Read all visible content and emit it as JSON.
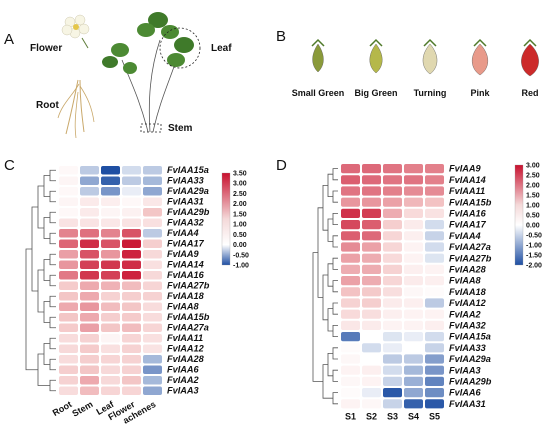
{
  "panels": {
    "A": {
      "label": "A",
      "organs": [
        "Flower",
        "Leaf",
        "Root",
        "Stem"
      ]
    },
    "B": {
      "label": "B",
      "stages": [
        "Small Green",
        "Big Green",
        "Turning",
        "Pink",
        "Red"
      ],
      "fruit_colors": [
        "#8a9a3a",
        "#b5b84a",
        "#e0d8b0",
        "#e89a8a",
        "#cc2a2a"
      ]
    },
    "C": {
      "label": "C",
      "columns": [
        "Root",
        "Stem",
        "Leaf",
        "Flower",
        "achenes"
      ],
      "legend_ticks": [
        "3.50",
        "3.00",
        "2.50",
        "2.00",
        "1.50",
        "1.00",
        "0.50",
        "0.00",
        "-0.50",
        "-1.00"
      ]
    },
    "D": {
      "label": "D",
      "columns": [
        "S1",
        "S2",
        "S3",
        "S4",
        "S5"
      ],
      "legend_ticks": [
        "3.00",
        "2.50",
        "2.00",
        "1.50",
        "1.00",
        "0.50",
        "0.00",
        "-0.50",
        "-1.00",
        "-1.50",
        "-2.00"
      ]
    }
  },
  "chart_data": [
    {
      "type": "heatmap",
      "panel": "C",
      "columns": [
        "Root",
        "Stem",
        "Leaf",
        "Flower",
        "achenes"
      ],
      "rows": [
        "FvIAA15a",
        "FvIAA33",
        "FvIAA29a",
        "FvIAA31",
        "FvIAA29b",
        "FvIAA32",
        "FvIAA4",
        "FvIAA17",
        "FvIAA9",
        "FvIAA14",
        "FvIAA16",
        "FvIAA27b",
        "FvIAA18",
        "FvIAA8",
        "FvIAA15b",
        "FvIAA27a",
        "FvIAA11",
        "FvIAA12",
        "FvIAA28",
        "FvIAA6",
        "FvIAA2",
        "FvIAA3"
      ],
      "values": [
        [
          0.2,
          -0.3,
          -1.0,
          -0.2,
          -0.3
        ],
        [
          0.3,
          -0.5,
          -0.9,
          -0.3,
          -0.4
        ],
        [
          0.2,
          -0.3,
          -0.6,
          -0.1,
          -0.5
        ],
        [
          0.3,
          0.6,
          0.5,
          0.2,
          0.7
        ],
        [
          0.2,
          0.6,
          0.3,
          0.4,
          1.6
        ],
        [
          0.8,
          0.8,
          0.7,
          0.8,
          0.9
        ],
        [
          2.3,
          2.5,
          2.3,
          2.8,
          -0.3
        ],
        [
          2.6,
          3.2,
          2.8,
          3.4,
          1.4
        ],
        [
          2.0,
          2.8,
          2.1,
          3.3,
          1.1
        ],
        [
          2.1,
          3.0,
          3.1,
          3.2,
          0.9
        ],
        [
          2.4,
          3.1,
          3.0,
          3.3,
          1.1
        ],
        [
          1.5,
          1.9,
          1.8,
          1.7,
          1.2
        ],
        [
          1.6,
          1.9,
          1.3,
          1.4,
          1.3
        ],
        [
          1.9,
          2.1,
          1.7,
          1.6,
          1.0
        ],
        [
          1.6,
          1.9,
          1.4,
          1.5,
          1.0
        ],
        [
          1.5,
          2.0,
          1.6,
          1.7,
          1.2
        ],
        [
          1.0,
          1.3,
          0.3,
          1.2,
          0.9
        ],
        [
          1.1,
          1.5,
          0.9,
          1.3,
          0.8
        ],
        [
          1.0,
          1.4,
          1.2,
          1.3,
          -0.4
        ],
        [
          1.4,
          1.6,
          1.1,
          1.3,
          -0.6
        ],
        [
          1.3,
          1.9,
          1.1,
          1.6,
          -0.4
        ],
        [
          1.0,
          1.7,
          1.2,
          1.2,
          -0.5
        ]
      ],
      "color_range": [
        -1.0,
        3.5
      ]
    },
    {
      "type": "heatmap",
      "panel": "D",
      "columns": [
        "S1",
        "S2",
        "S3",
        "S4",
        "S5"
      ],
      "rows": [
        "FvIAA9",
        "FvIAA14",
        "FvIAA11",
        "FvIAA15b",
        "FvIAA16",
        "FvIAA17",
        "FvIAA4",
        "FvIAA27a",
        "FvIAA27b",
        "FvIAA28",
        "FvIAA8",
        "FvIAA18",
        "FvIAA12",
        "FvIAA2",
        "FvIAA32",
        "FvIAA15a",
        "FvIAA33",
        "FvIAA29a",
        "FvIAA3",
        "FvIAA29b",
        "FvIAA6",
        "FvIAA31"
      ],
      "values": [
        [
          2.2,
          2.2,
          2.1,
          2.0,
          2.0
        ],
        [
          2.3,
          2.2,
          2.1,
          2.1,
          2.0
        ],
        [
          2.1,
          2.1,
          2.0,
          1.9,
          1.9
        ],
        [
          1.8,
          1.8,
          1.7,
          1.5,
          1.4
        ],
        [
          2.7,
          2.6,
          1.6,
          0.9,
          0.7
        ],
        [
          2.5,
          2.3,
          1.2,
          0.5,
          -0.4
        ],
        [
          2.3,
          2.2,
          1.0,
          0.4,
          -0.5
        ],
        [
          1.9,
          1.7,
          1.0,
          0.3,
          -0.4
        ],
        [
          1.7,
          1.6,
          0.9,
          0.3,
          -0.3
        ],
        [
          1.6,
          1.6,
          1.1,
          0.4,
          0.3
        ],
        [
          1.7,
          1.6,
          1.0,
          0.5,
          0.4
        ],
        [
          1.4,
          1.3,
          0.8,
          0.2,
          0.1
        ],
        [
          1.1,
          1.2,
          0.5,
          0.4,
          -0.6
        ],
        [
          0.9,
          0.8,
          0.4,
          0.3,
          0.3
        ],
        [
          0.6,
          0.5,
          0.3,
          0.3,
          0.4
        ],
        [
          -1.5,
          0.0,
          -0.3,
          -0.2,
          -0.4
        ],
        [
          0.1,
          -0.4,
          -0.2,
          0.0,
          -0.5
        ],
        [
          0.2,
          0.0,
          -0.6,
          -0.6,
          -1.1
        ],
        [
          0.3,
          0.4,
          -0.4,
          -0.8,
          -1.2
        ],
        [
          0.2,
          0.3,
          -0.5,
          -0.9,
          -1.4
        ],
        [
          0.1,
          -0.2,
          -1.9,
          -1.0,
          -1.3
        ],
        [
          0.3,
          0.2,
          -0.5,
          -1.8,
          -1.9
        ]
      ],
      "color_range": [
        -2.0,
        3.0
      ]
    }
  ]
}
